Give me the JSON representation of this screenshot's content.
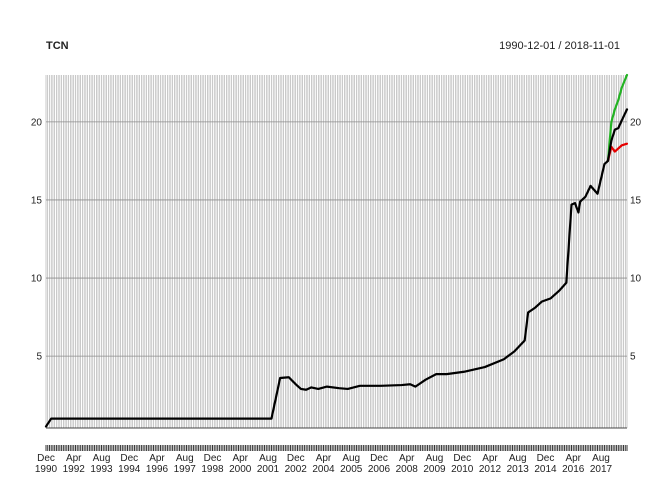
{
  "chart_data": {
    "type": "line",
    "title": "TCN",
    "subtitle": "1990-12-01 / 2018-11-01",
    "x_start": "1990-12",
    "x_end": "2018-11",
    "ylim": [
      0.4,
      23
    ],
    "grid": true,
    "y_ticks": [
      5,
      10,
      15,
      20
    ],
    "x_ticks": [
      {
        "date": "1990-12",
        "label": [
          "Dec",
          "1990"
        ]
      },
      {
        "date": "1992-04",
        "label": [
          "Apr",
          "1992"
        ]
      },
      {
        "date": "1993-08",
        "label": [
          "Aug",
          "1993"
        ]
      },
      {
        "date": "1994-12",
        "label": [
          "Dec",
          "1994"
        ]
      },
      {
        "date": "1996-04",
        "label": [
          "Apr",
          "1996"
        ]
      },
      {
        "date": "1997-08",
        "label": [
          "Aug",
          "1997"
        ]
      },
      {
        "date": "1998-12",
        "label": [
          "Dec",
          "1998"
        ]
      },
      {
        "date": "2000-04",
        "label": [
          "Apr",
          "2000"
        ]
      },
      {
        "date": "2001-08",
        "label": [
          "Aug",
          "2001"
        ]
      },
      {
        "date": "2002-12",
        "label": [
          "Dec",
          "2002"
        ]
      },
      {
        "date": "2004-04",
        "label": [
          "Apr",
          "2004"
        ]
      },
      {
        "date": "2005-08",
        "label": [
          "Aug",
          "2005"
        ]
      },
      {
        "date": "2006-12",
        "label": [
          "Dec",
          "2006"
        ]
      },
      {
        "date": "2008-04",
        "label": [
          "Apr",
          "2008"
        ]
      },
      {
        "date": "2009-08",
        "label": [
          "Aug",
          "2009"
        ]
      },
      {
        "date": "2010-12",
        "label": [
          "Dec",
          "2010"
        ]
      },
      {
        "date": "2012-04",
        "label": [
          "Apr",
          "2012"
        ]
      },
      {
        "date": "2013-08",
        "label": [
          "Aug",
          "2013"
        ]
      },
      {
        "date": "2014-12",
        "label": [
          "Dec",
          "2014"
        ]
      },
      {
        "date": "2016-04",
        "label": [
          "Apr",
          "2016"
        ]
      },
      {
        "date": "2017-08",
        "label": [
          "Aug",
          "2017"
        ]
      }
    ],
    "series": [
      {
        "color": "#000000",
        "points": [
          [
            "1990-12",
            0.5
          ],
          [
            "1991-03",
            1.0
          ],
          [
            "1995-01",
            1.0
          ],
          [
            "2001-10",
            1.0
          ],
          [
            "2002-03",
            3.6
          ],
          [
            "2002-08",
            3.65
          ],
          [
            "2002-12",
            3.2
          ],
          [
            "2003-03",
            2.9
          ],
          [
            "2003-06",
            2.85
          ],
          [
            "2003-09",
            3.0
          ],
          [
            "2004-01",
            2.9
          ],
          [
            "2004-06",
            3.05
          ],
          [
            "2005-01",
            2.95
          ],
          [
            "2005-06",
            2.9
          ],
          [
            "2006-01",
            3.1
          ],
          [
            "2007-01",
            3.1
          ],
          [
            "2008-01",
            3.15
          ],
          [
            "2008-06",
            3.2
          ],
          [
            "2008-09",
            3.05
          ],
          [
            "2009-03",
            3.5
          ],
          [
            "2009-09",
            3.85
          ],
          [
            "2010-03",
            3.85
          ],
          [
            "2011-01",
            4.0
          ],
          [
            "2012-01",
            4.3
          ],
          [
            "2012-12",
            4.8
          ],
          [
            "2013-06",
            5.3
          ],
          [
            "2013-12",
            6.0
          ],
          [
            "2014-02",
            7.8
          ],
          [
            "2014-06",
            8.1
          ],
          [
            "2014-10",
            8.5
          ],
          [
            "2015-03",
            8.7
          ],
          [
            "2015-08",
            9.2
          ],
          [
            "2015-12",
            9.7
          ],
          [
            "2016-03",
            14.7
          ],
          [
            "2016-05",
            14.8
          ],
          [
            "2016-07",
            14.2
          ],
          [
            "2016-08",
            14.9
          ],
          [
            "2016-11",
            15.2
          ],
          [
            "2017-02",
            15.9
          ],
          [
            "2017-06",
            15.4
          ],
          [
            "2017-10",
            17.3
          ],
          [
            "2017-12",
            17.5
          ],
          [
            "2018-02",
            18.8
          ],
          [
            "2018-04",
            19.5
          ],
          [
            "2018-06",
            19.6
          ],
          [
            "2018-08",
            20.1
          ],
          [
            "2018-11",
            20.8
          ]
        ]
      },
      {
        "color": "#22b322",
        "points": [
          [
            "2017-12",
            17.5
          ],
          [
            "2018-02",
            20.0
          ],
          [
            "2018-04",
            20.8
          ],
          [
            "2018-06",
            21.4
          ],
          [
            "2018-08",
            22.2
          ],
          [
            "2018-11",
            23.0
          ]
        ]
      },
      {
        "color": "#e60000",
        "points": [
          [
            "2017-12",
            17.5
          ],
          [
            "2018-02",
            18.4
          ],
          [
            "2018-04",
            18.1
          ],
          [
            "2018-06",
            18.3
          ],
          [
            "2018-08",
            18.5
          ],
          [
            "2018-11",
            18.6
          ]
        ]
      }
    ]
  }
}
